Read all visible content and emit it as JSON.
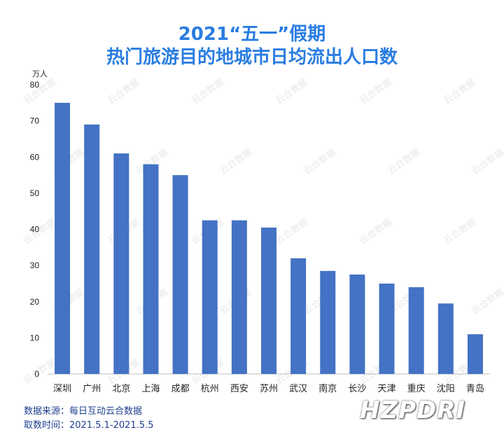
{
  "title_line1": "2021“五一”假期",
  "title_line2": "热门旅游目的地城市日均流出人口数",
  "watermark_text": "云合数据",
  "accent_color": "#4472c4",
  "title_color": "#2a7de1",
  "source_line1": "数据来源：每日互动云合数据",
  "source_line2": "取数时间：2021.5.1-2021.5.5",
  "logo_text": "HZPDRI",
  "chart_data": {
    "type": "bar",
    "title": "2021“五一”假期 热门旅游目的地城市日均流出人口数",
    "ylabel": "万人",
    "xlabel": "",
    "ylim": [
      0,
      80
    ],
    "yticks": [
      0,
      10,
      20,
      30,
      40,
      50,
      60,
      70,
      80
    ],
    "grid": false,
    "categories": [
      "深圳",
      "广州",
      "北京",
      "上海",
      "成都",
      "杭州",
      "西安",
      "苏州",
      "武汉",
      "南京",
      "长沙",
      "天津",
      "重庆",
      "沈阳",
      "青岛"
    ],
    "values": [
      75,
      69,
      61,
      58,
      55,
      42.5,
      42.5,
      40.5,
      32,
      28.5,
      27.5,
      25,
      24,
      19.5,
      11
    ]
  }
}
